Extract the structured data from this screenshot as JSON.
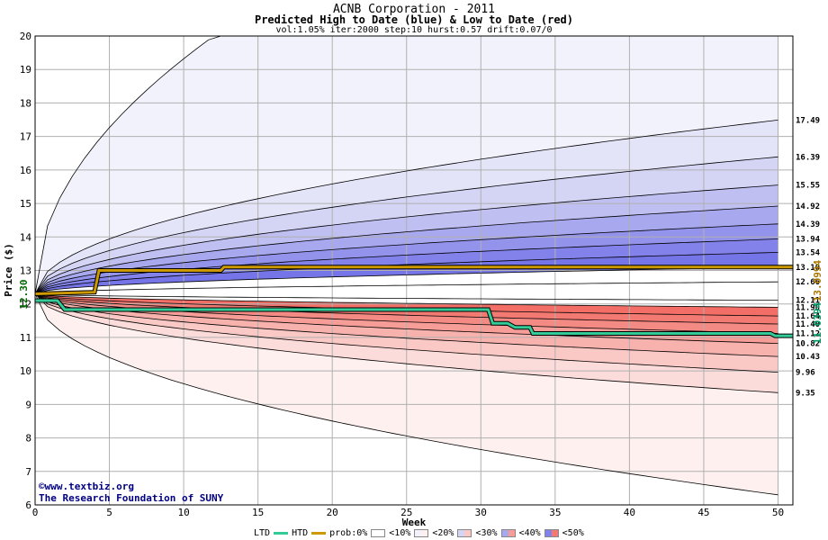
{
  "title": "ACNB Corporation - 2011",
  "subtitle": "Predicted High to Date (blue) &  Low to Date (red)",
  "params": "vol:1.05% iter:2000 step:10 hurst:0.57 drift:0.07/0",
  "credits": {
    "line1": "©www.textbiz.org",
    "line2": "The Research Foundation of SUNY"
  },
  "legend": {
    "ltd": "LTD",
    "htd": "HTD",
    "prob": "prob:0%",
    "lt10": "<10%",
    "lt20": "<20%",
    "lt30": "<30%",
    "lt40": "<40%",
    "lt50": "<50%",
    "ltd_color": "#33cc99",
    "htd_color": "#cc9900"
  },
  "chart_data": {
    "type": "line",
    "xlabel": "Week",
    "ylabel": "Price ($)",
    "xlim": [
      0,
      51
    ],
    "ylim": [
      6,
      20
    ],
    "xticks": [
      0,
      5,
      10,
      15,
      20,
      25,
      30,
      35,
      40,
      45,
      50
    ],
    "yticks": [
      6,
      7,
      8,
      9,
      10,
      11,
      12,
      13,
      14,
      15,
      16,
      17,
      18,
      19,
      20
    ],
    "grid": true,
    "start_price": "12.30",
    "start_value": 12.3,
    "htd_final_label": "13.0994",
    "ltd_final_label": "11.0394",
    "upper_band_levels": [
      {
        "label": "17.49",
        "value": 17.49
      },
      {
        "label": "16.39",
        "value": 16.39
      },
      {
        "label": "15.55",
        "value": 15.55
      },
      {
        "label": "14.92",
        "value": 14.92
      },
      {
        "label": "14.39",
        "value": 14.39
      },
      {
        "label": "13.94",
        "value": 13.94
      },
      {
        "label": "13.54",
        "value": 13.54
      },
      {
        "label": "13.10",
        "value": 13.1
      },
      {
        "label": "12.66",
        "value": 12.66
      }
    ],
    "lower_band_levels": [
      {
        "label": "12.11",
        "value": 12.11
      },
      {
        "label": "11.90",
        "value": 11.9
      },
      {
        "label": "11.64",
        "value": 11.64
      },
      {
        "label": "11.40",
        "value": 11.4
      },
      {
        "label": "11.12",
        "value": 11.12
      },
      {
        "label": "10.82",
        "value": 10.82
      },
      {
        "label": "10.43",
        "value": 10.43
      },
      {
        "label": "9.96",
        "value": 9.96
      },
      {
        "label": "9.35",
        "value": 9.35
      }
    ],
    "outer_upper_end": 28,
    "outer_lower_end": 6.3,
    "upper_band_colors": [
      "#f2f2fc",
      "#e4e4f9",
      "#d4d4f5",
      "#bfbff2",
      "#a8a8ef",
      "#9393ec",
      "#8282ea",
      "#7575e8"
    ],
    "lower_band_colors": [
      "#fdf0ee",
      "#fcdcda",
      "#fac8c5",
      "#f8b2ae",
      "#f69d98",
      "#f48a84",
      "#f37a73",
      "#f26e66"
    ],
    "series": [
      {
        "name": "HTD",
        "x": [
          0,
          4,
          4.3,
          12.5,
          12.7,
          51
        ],
        "y": [
          12.3,
          12.35,
          13.0,
          13.0,
          13.1,
          13.1
        ]
      },
      {
        "name": "LTD",
        "x": [
          0,
          1.5,
          2,
          30.5,
          30.8,
          31.8,
          32.3,
          33.3,
          33.5,
          49.5,
          49.8,
          51
        ],
        "y": [
          12.1,
          12.1,
          11.83,
          11.83,
          11.42,
          11.42,
          11.3,
          11.3,
          11.12,
          11.12,
          11.05,
          11.05
        ]
      }
    ]
  }
}
